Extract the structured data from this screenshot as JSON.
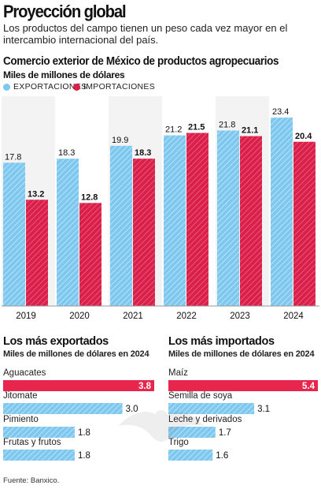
{
  "header": {
    "title": "Proyección global",
    "subtitle": "Los productos del campo tienen un peso cada vez mayor en el intercambio internacional del país."
  },
  "colors": {
    "exports": "#7ec8f0",
    "imports": "#d91f4a",
    "highlight": "#e8254d"
  },
  "main_chart": {
    "title": "Comercio exterior de México de productos agropecuarios",
    "units": "Miles de millones de dólares",
    "legend": {
      "exports": "EXPORTACIONES",
      "imports": "IMPORTACIONES"
    }
  },
  "exports_section": {
    "title": "Los más exportados",
    "units": "Miles de millones de dólares en 2024"
  },
  "imports_section": {
    "title": "Los más importados",
    "units": "Miles de millones de dólares en 2024"
  },
  "source": "Fuente: Banxico.",
  "chart_data": [
    {
      "type": "bar",
      "title": "Comercio exterior de México de productos agropecuarios",
      "ylabel": "Miles de millones de dólares",
      "categories": [
        "2019",
        "2020",
        "2021",
        "2022",
        "2023",
        "2024"
      ],
      "series": [
        {
          "name": "EXPORTACIONES",
          "values": [
            17.8,
            18.3,
            19.9,
            21.2,
            21.8,
            23.4
          ]
        },
        {
          "name": "IMPORTACIONES",
          "values": [
            13.2,
            12.8,
            18.3,
            21.5,
            21.1,
            20.4
          ]
        }
      ],
      "value_labels": {
        "EXPORTACIONES": [
          "17.8",
          "18.3",
          "19.9",
          "21.2",
          "21.8",
          "23.4"
        ],
        "IMPORTACIONES": [
          "13.2",
          "12.8",
          "18.3",
          "21.5",
          "21.1",
          "20.4"
        ]
      },
      "ylim": [
        0,
        24
      ],
      "grid": false,
      "legend": "top-left"
    },
    {
      "type": "bar",
      "orientation": "horizontal",
      "title": "Los más exportados",
      "xlabel": "Miles de millones de dólares en 2024",
      "categories": [
        "Aguacates",
        "Jitomate",
        "Pimiento",
        "Frutas y frutos"
      ],
      "values": [
        3.8,
        3.0,
        1.8,
        1.8
      ],
      "value_labels": [
        "3.8",
        "3.0",
        "1.8",
        "1.8"
      ],
      "xlim": [
        0,
        3.8
      ],
      "highlight": "Aguacates"
    },
    {
      "type": "bar",
      "orientation": "horizontal",
      "title": "Los más importados",
      "xlabel": "Miles de millones de dólares en 2024",
      "categories": [
        "Maíz",
        "Semilla de soya",
        "Leche y derivados",
        "Trigo"
      ],
      "values": [
        5.4,
        3.1,
        1.7,
        1.6
      ],
      "value_labels": [
        "5.4",
        "3.1",
        "1.7",
        "1.6"
      ],
      "xlim": [
        0,
        5.4
      ],
      "highlight": "Maíz"
    }
  ]
}
